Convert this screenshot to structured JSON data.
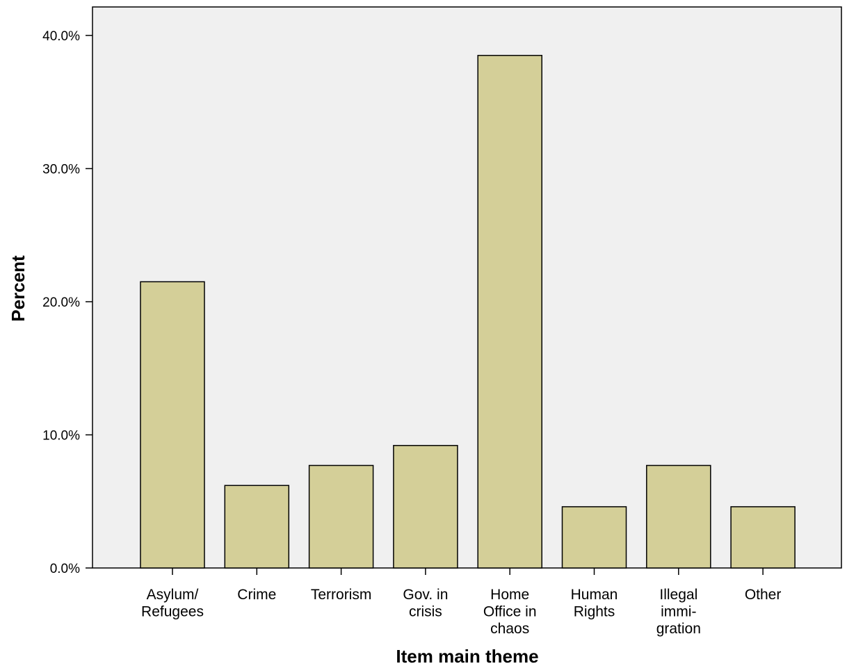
{
  "chart_data": {
    "type": "bar",
    "categories": [
      [
        "Asylum/",
        "Refugees"
      ],
      [
        "Crime"
      ],
      [
        "Terrorism"
      ],
      [
        "Gov. in",
        "crisis"
      ],
      [
        "Home",
        "Office in",
        "chaos"
      ],
      [
        "Human",
        "Rights"
      ],
      [
        "Illegal",
        "immi-",
        "gration"
      ],
      [
        "Other"
      ]
    ],
    "values": [
      21.5,
      6.2,
      7.7,
      9.2,
      38.5,
      4.6,
      7.7,
      4.6
    ],
    "xlabel": "Item main theme",
    "ylabel": "Percent",
    "ylim": [
      0,
      40
    ],
    "y_ticks": [
      0,
      10,
      20,
      30,
      40
    ],
    "y_tick_labels": [
      "0.0%",
      "10.0%",
      "20.0%",
      "30.0%",
      "40.0%"
    ],
    "colors": {
      "bar_fill": "#d4cf98",
      "bar_stroke": "#000000",
      "plot_background": "#f0f0f0"
    },
    "grid": false,
    "legend": "none"
  }
}
